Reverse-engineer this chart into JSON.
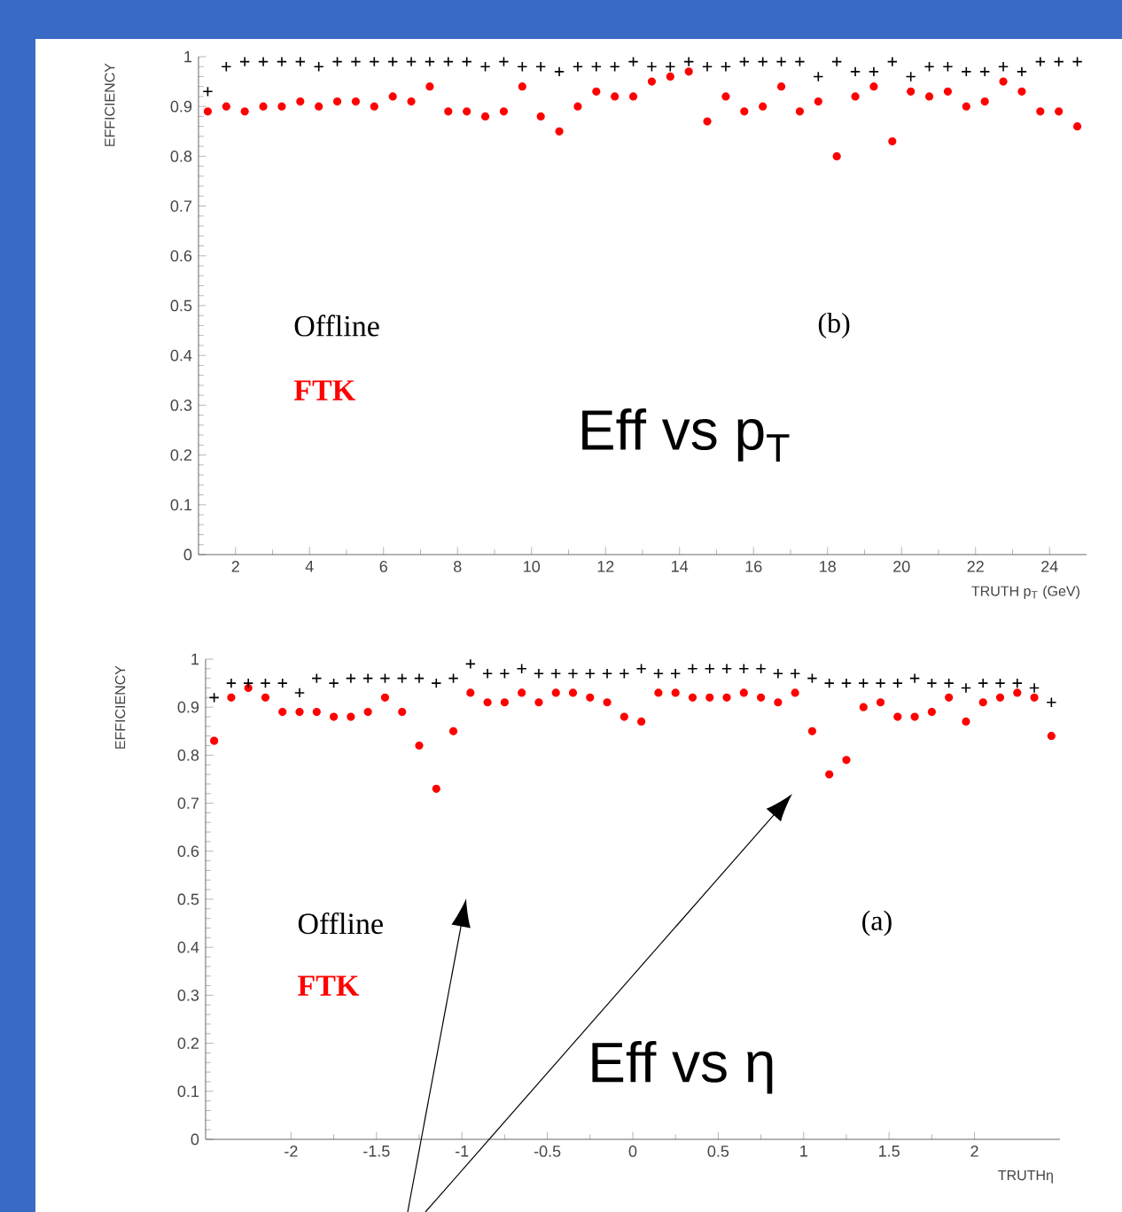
{
  "chart_data": [
    {
      "type": "scatter",
      "ylabel": "EFFICIENCY",
      "xlabel": "TRUTH p$_{T}$ (GeV)",
      "annotations": [
        "(b)",
        "Eff vs p$_{T}$"
      ],
      "xlim": [
        1,
        25
      ],
      "xticks": [
        2,
        4,
        6,
        8,
        10,
        12,
        14,
        16,
        18,
        20,
        22,
        24
      ],
      "ylim": [
        0,
        1
      ],
      "yticks": [
        0,
        0.1,
        0.2,
        0.3,
        0.4,
        0.5,
        0.6,
        0.7,
        0.8,
        0.9,
        1
      ],
      "x": [
        1.25,
        1.75,
        2.25,
        2.75,
        3.25,
        3.75,
        4.25,
        4.75,
        5.25,
        5.75,
        6.25,
        6.75,
        7.25,
        7.75,
        8.25,
        8.75,
        9.25,
        9.75,
        10.25,
        10.75,
        11.25,
        11.75,
        12.25,
        12.75,
        13.25,
        13.75,
        14.25,
        14.75,
        15.25,
        15.75,
        16.25,
        16.75,
        17.25,
        17.75,
        18.25,
        18.75,
        19.25,
        19.75,
        20.25,
        20.75,
        21.25,
        21.75,
        22.25,
        22.75,
        23.25,
        23.75,
        24.25,
        24.75
      ],
      "series": [
        {
          "name": "Offline",
          "color": "#000000",
          "marker": "cross",
          "values": [
            0.93,
            0.98,
            0.99,
            0.99,
            0.99,
            0.99,
            0.98,
            0.99,
            0.99,
            0.99,
            0.99,
            0.99,
            0.99,
            0.99,
            0.99,
            0.98,
            0.99,
            0.98,
            0.98,
            0.97,
            0.98,
            0.98,
            0.98,
            0.99,
            0.98,
            0.98,
            0.99,
            0.98,
            0.98,
            0.99,
            0.99,
            0.99,
            0.99,
            0.96,
            0.99,
            0.97,
            0.97,
            0.99,
            0.96,
            0.98,
            0.98,
            0.97,
            0.97,
            0.98,
            0.97,
            0.99,
            0.99,
            0.99
          ]
        },
        {
          "name": "FTK",
          "color": "#ff0000",
          "marker": "circle",
          "values": [
            0.89,
            0.9,
            0.89,
            0.9,
            0.9,
            0.91,
            0.9,
            0.91,
            0.91,
            0.9,
            0.92,
            0.91,
            0.94,
            0.89,
            0.89,
            0.88,
            0.89,
            0.94,
            0.88,
            0.85,
            0.9,
            0.93,
            0.92,
            0.92,
            0.95,
            0.96,
            0.97,
            0.87,
            0.92,
            0.89,
            0.9,
            0.94,
            0.89,
            0.91,
            0.8,
            0.92,
            0.94,
            0.83,
            0.93,
            0.92,
            0.93,
            0.9,
            0.91,
            0.95,
            0.93,
            0.89,
            0.89,
            0.86
          ]
        }
      ]
    },
    {
      "type": "scatter",
      "ylabel": "EFFICIENCY",
      "xlabel": "TRUTHη",
      "annotations": [
        "(a)",
        "Eff vs η"
      ],
      "xlim": [
        -2.5,
        2.5
      ],
      "xticks": [
        -2,
        -1.5,
        -1,
        -0.5,
        0,
        0.5,
        1,
        1.5,
        2
      ],
      "ylim": [
        0,
        1
      ],
      "yticks": [
        0,
        0.1,
        0.2,
        0.3,
        0.4,
        0.5,
        0.6,
        0.7,
        0.8,
        0.9,
        1
      ],
      "x": [
        -2.45,
        -2.35,
        -2.25,
        -2.15,
        -2.05,
        -1.95,
        -1.85,
        -1.75,
        -1.65,
        -1.55,
        -1.45,
        -1.35,
        -1.25,
        -1.15,
        -1.05,
        -0.95,
        -0.85,
        -0.75,
        -0.65,
        -0.55,
        -0.45,
        -0.35,
        -0.25,
        -0.15,
        -0.05,
        0.05,
        0.15,
        0.25,
        0.35,
        0.45,
        0.55,
        0.65,
        0.75,
        0.85,
        0.95,
        1.05,
        1.15,
        1.25,
        1.35,
        1.45,
        1.55,
        1.65,
        1.75,
        1.85,
        1.95,
        2.05,
        2.15,
        2.25,
        2.35,
        2.45
      ],
      "series": [
        {
          "name": "Offline",
          "color": "#000000",
          "marker": "cross",
          "values": [
            0.92,
            0.95,
            0.95,
            0.95,
            0.95,
            0.93,
            0.96,
            0.95,
            0.96,
            0.96,
            0.96,
            0.96,
            0.96,
            0.95,
            0.96,
            0.99,
            0.97,
            0.97,
            0.98,
            0.97,
            0.97,
            0.97,
            0.97,
            0.97,
            0.97,
            0.98,
            0.97,
            0.97,
            0.98,
            0.98,
            0.98,
            0.98,
            0.98,
            0.97,
            0.97,
            0.96,
            0.95,
            0.95,
            0.95,
            0.95,
            0.95,
            0.96,
            0.95,
            0.95,
            0.94,
            0.95,
            0.95,
            0.95,
            0.94,
            0.91
          ]
        },
        {
          "name": "FTK",
          "color": "#ff0000",
          "marker": "circle",
          "values": [
            0.83,
            0.92,
            0.94,
            0.92,
            0.89,
            0.89,
            0.89,
            0.88,
            0.88,
            0.89,
            0.92,
            0.89,
            0.82,
            0.73,
            0.85,
            0.93,
            0.91,
            0.91,
            0.93,
            0.91,
            0.93,
            0.93,
            0.92,
            0.91,
            0.88,
            0.87,
            0.93,
            0.93,
            0.92,
            0.92,
            0.92,
            0.93,
            0.92,
            0.91,
            0.93,
            0.85,
            0.76,
            0.79,
            0.9,
            0.91,
            0.88,
            0.88,
            0.89,
            0.92,
            0.87,
            0.91,
            0.92,
            0.93,
            0.92,
            0.84
          ]
        }
      ]
    }
  ]
}
